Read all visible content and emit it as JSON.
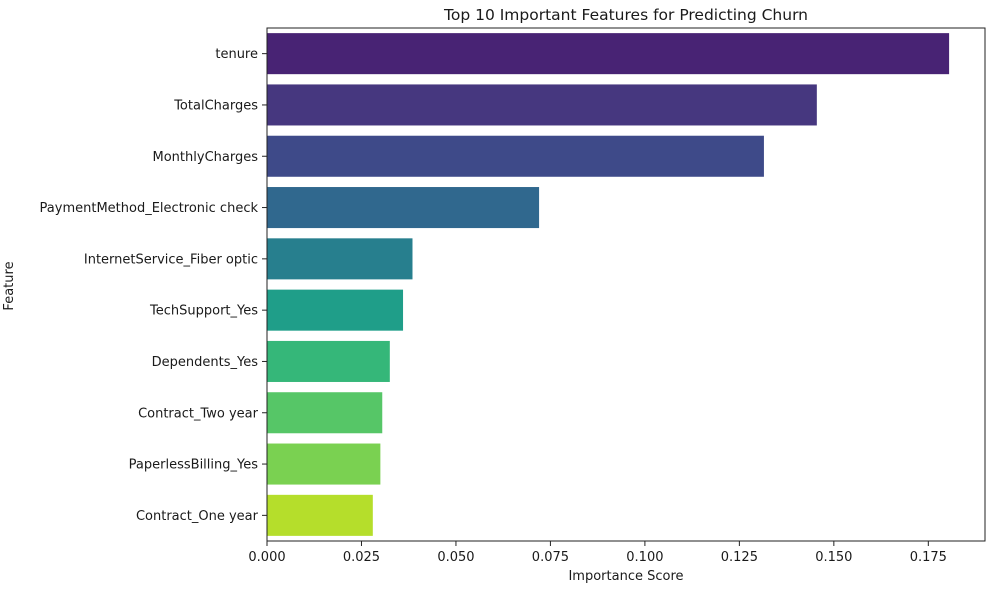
{
  "chart_data": {
    "type": "bar",
    "orientation": "horizontal",
    "title": "Top 10 Important Features for Predicting Churn",
    "xlabel": "Importance Score",
    "ylabel": "Feature",
    "categories": [
      "tenure",
      "TotalCharges",
      "MonthlyCharges",
      "PaymentMethod_Electronic check",
      "InternetService_Fiber optic",
      "TechSupport_Yes",
      "Dependents_Yes",
      "Contract_Two year",
      "PaperlessBilling_Yes",
      "Contract_One year"
    ],
    "values": [
      0.1805,
      0.1455,
      0.1315,
      0.072,
      0.0385,
      0.036,
      0.0325,
      0.0305,
      0.03,
      0.028
    ],
    "colors": [
      "#482374",
      "#46377f",
      "#3e4a89",
      "#30688e",
      "#277f8e",
      "#1f9e89",
      "#35b779",
      "#56c667",
      "#7ad151",
      "#b5de2b"
    ],
    "xlim": [
      0,
      0.19
    ],
    "xticks": [
      0.0,
      0.025,
      0.05,
      0.075,
      0.1,
      0.125,
      0.15,
      0.175
    ],
    "xtick_labels": [
      "0.000",
      "0.025",
      "0.050",
      "0.075",
      "0.100",
      "0.125",
      "0.150",
      "0.175"
    ],
    "grid": false,
    "legend": "none"
  }
}
